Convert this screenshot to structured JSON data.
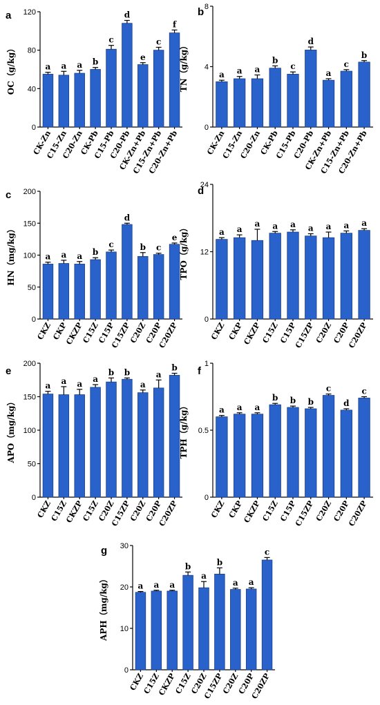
{
  "chart_data": [
    {
      "panel": "a",
      "type": "bar",
      "ylabel": "OC（g/kg）",
      "ylim": [
        0,
        120
      ],
      "yticks": [
        0,
        40,
        80,
        120
      ],
      "categories": [
        "CK-Zn",
        "C15-Zn",
        "C20-Zn",
        "CK-Pb",
        "C15-Pb",
        "C20-Pb",
        "CK-Zn+Pb",
        "C15-Zn+Pb",
        "C20-Zn+Pb"
      ],
      "values": [
        55,
        54,
        56,
        60,
        81,
        108,
        65,
        80,
        98
      ],
      "errors": [
        2,
        4,
        3,
        2,
        4,
        3,
        2,
        3,
        3
      ],
      "letters": [
        "a",
        "a",
        "a",
        "b",
        "c",
        "d",
        "e",
        "c",
        "f"
      ]
    },
    {
      "panel": "b",
      "type": "bar",
      "ylabel": "TN（g/kg）",
      "ylim": [
        0,
        8
      ],
      "yticks": [
        0,
        4,
        8
      ],
      "categories": [
        "CK-Zn",
        "C15-Zn",
        "C20-Zn",
        "CK-Pb",
        "C15-Pb",
        "C20-Pb",
        "CK-Zn+Pb",
        "C15-Zn+Pb",
        "C20-Zn+Pb"
      ],
      "values": [
        3.0,
        3.2,
        3.2,
        3.9,
        3.5,
        5.1,
        3.1,
        3.7,
        4.3
      ],
      "errors": [
        0.1,
        0.15,
        0.25,
        0.15,
        0.15,
        0.2,
        0.1,
        0.1,
        0.1
      ],
      "letters": [
        "a",
        "a",
        "a",
        "b",
        "c",
        "d",
        "a",
        "c",
        "b"
      ]
    },
    {
      "panel": "c",
      "type": "bar",
      "ylabel": "HN（mg/kg）",
      "ylim": [
        0,
        200
      ],
      "yticks": [
        0,
        50,
        100,
        150,
        200
      ],
      "categories": [
        "CKZ",
        "CKP",
        "CKZP",
        "C15Z",
        "C15P",
        "C15ZP",
        "C20Z",
        "C20P",
        "C20ZP"
      ],
      "values": [
        86,
        87,
        86,
        93,
        105,
        148,
        98,
        101,
        117
      ],
      "errors": [
        3,
        5,
        4,
        3,
        3,
        2,
        6,
        2,
        2
      ],
      "letters": [
        "a",
        "a",
        "a",
        "b",
        "c",
        "d",
        "b",
        "c",
        "e"
      ]
    },
    {
      "panel": "d",
      "type": "bar",
      "ylabel": "TPO（g/kg）",
      "ylim": [
        0,
        24
      ],
      "yticks": [
        0,
        12,
        24
      ],
      "categories": [
        "CKZ",
        "CKP",
        "CKZP",
        "C15Z",
        "C15P",
        "C15ZP",
        "C20Z",
        "C20P",
        "C20ZP"
      ],
      "values": [
        14.2,
        14.5,
        14.0,
        15.3,
        15.5,
        14.8,
        14.5,
        15.3,
        15.8
      ],
      "errors": [
        0.3,
        0.5,
        2.0,
        0.3,
        0.4,
        0.4,
        1.0,
        0.4,
        0.3
      ],
      "letters": [
        "a",
        "a",
        "a",
        "a",
        "a",
        "a",
        "a",
        "a",
        "a"
      ]
    },
    {
      "panel": "e",
      "type": "bar",
      "ylabel": "APO（mg/kg）",
      "ylim": [
        0,
        200
      ],
      "yticks": [
        0,
        50,
        100,
        150,
        200
      ],
      "categories": [
        "CKZ",
        "C15Z",
        "CKZP",
        "C15Z",
        "C20Z",
        "C15ZP",
        "C20Z",
        "C20P",
        "C20ZP"
      ],
      "values": [
        154,
        153,
        153,
        164,
        172,
        176,
        156,
        163,
        182
      ],
      "errors": [
        4,
        12,
        8,
        4,
        6,
        2,
        4,
        12,
        3
      ],
      "letters": [
        "a",
        "a",
        "a",
        "a",
        "b",
        "b",
        "a",
        "a",
        "b"
      ]
    },
    {
      "panel": "f",
      "type": "bar",
      "ylabel": "TPH（g/kg）",
      "ylim": [
        0,
        1
      ],
      "yticks": [
        0,
        0.5,
        1
      ],
      "categories": [
        "CKZ",
        "CKP",
        "CKZP",
        "C15Z",
        "C15P",
        "C15ZP",
        "C20Z",
        "C20P",
        "C20ZP"
      ],
      "values": [
        0.6,
        0.62,
        0.62,
        0.69,
        0.67,
        0.66,
        0.76,
        0.65,
        0.74
      ],
      "errors": [
        0.01,
        0.01,
        0.01,
        0.01,
        0.01,
        0.01,
        0.01,
        0.01,
        0.01
      ],
      "letters": [
        "a",
        "a",
        "a",
        "b",
        "b",
        "b",
        "c",
        "d",
        "c"
      ]
    },
    {
      "panel": "g",
      "type": "bar",
      "ylabel": "APH（mg/kg）",
      "ylim": [
        0,
        30
      ],
      "yticks": [
        0,
        10,
        20,
        30
      ],
      "categories": [
        "CKZ",
        "C15Z",
        "CKZP",
        "C15Z",
        "C20Z",
        "C15ZP",
        "C20Z",
        "C20P",
        "C20ZP"
      ],
      "values": [
        18.7,
        19.0,
        19.0,
        22.8,
        19.8,
        23.1,
        19.4,
        19.5,
        26.5
      ],
      "errors": [
        0.2,
        0.2,
        0.2,
        0.8,
        1.5,
        1.5,
        0.3,
        0.3,
        0.6
      ],
      "letters": [
        "a",
        "a",
        "a",
        "b",
        "a",
        "b",
        "a",
        "a",
        "c"
      ]
    }
  ],
  "colors": {
    "bar": "#2a62cc"
  }
}
